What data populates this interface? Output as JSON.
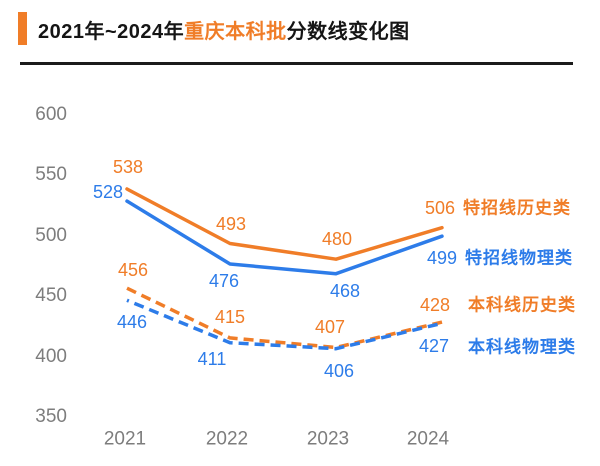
{
  "title": {
    "prefix": "2021年~2024年",
    "highlight": "重庆本科批",
    "suffix": "分数线变化图"
  },
  "colors": {
    "orange": "#F07D28",
    "blue": "#2D7CE9",
    "axis_gray": "#7D7D7D",
    "divider": "#1B1B1B"
  },
  "chart_data": {
    "type": "line",
    "title": "2021年~2024年重庆本科批分数线变化图",
    "categories": [
      "2021",
      "2022",
      "2023",
      "2024"
    ],
    "series": [
      {
        "name": "特招线历史类",
        "values": [
          538,
          493,
          480,
          506
        ],
        "color_key": "orange",
        "line_style": "solid"
      },
      {
        "name": "特招线物理类",
        "values": [
          528,
          476,
          468,
          499
        ],
        "color_key": "blue",
        "line_style": "solid"
      },
      {
        "name": "本科线历史类",
        "values": [
          456,
          415,
          407,
          428
        ],
        "color_key": "orange",
        "line_style": "dashed"
      },
      {
        "name": "本科线物理类",
        "values": [
          446,
          411,
          406,
          427
        ],
        "color_key": "blue",
        "line_style": "dashed"
      }
    ],
    "yticks": [
      350,
      400,
      450,
      500,
      550,
      600
    ],
    "ylim": [
      350,
      600
    ],
    "grid": false,
    "axis_lines": false,
    "legend_position": "right",
    "point_labels": true
  }
}
